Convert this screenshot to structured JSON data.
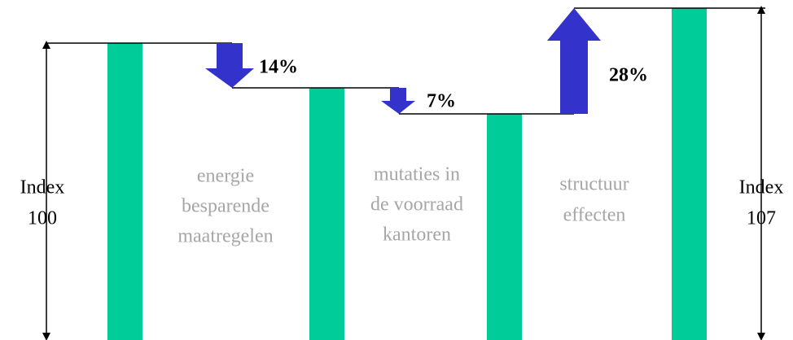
{
  "start_index": {
    "label": "Index",
    "value": "100"
  },
  "end_index": {
    "label": "Index",
    "value": "107"
  },
  "steps": [
    {
      "lines": [
        "energie",
        "besparende",
        "maatregelen"
      ],
      "change": "14%"
    },
    {
      "lines": [
        "mutaties in",
        "de voorraad",
        "kantoren"
      ],
      "change": "7%"
    },
    {
      "lines": [
        "structuur",
        "effecten"
      ],
      "change": "28%"
    }
  ]
}
